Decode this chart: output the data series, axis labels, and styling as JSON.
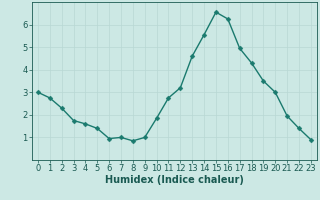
{
  "x": [
    0,
    1,
    2,
    3,
    4,
    5,
    6,
    7,
    8,
    9,
    10,
    11,
    12,
    13,
    14,
    15,
    16,
    17,
    18,
    19,
    20,
    21,
    22,
    23
  ],
  "y": [
    3.0,
    2.75,
    2.3,
    1.75,
    1.6,
    1.4,
    0.95,
    1.0,
    0.85,
    1.0,
    1.85,
    2.75,
    3.2,
    4.6,
    5.55,
    6.55,
    6.25,
    4.95,
    4.3,
    3.5,
    3.0,
    1.95,
    1.4,
    0.9
  ],
  "line_color": "#1a7a6e",
  "marker": "D",
  "marker_size": 2.5,
  "line_width": 1.0,
  "xlabel": "Humidex (Indice chaleur)",
  "xlim": [
    -0.5,
    23.5
  ],
  "ylim": [
    0,
    7
  ],
  "yticks": [
    1,
    2,
    3,
    4,
    5,
    6
  ],
  "xticks": [
    0,
    1,
    2,
    3,
    4,
    5,
    6,
    7,
    8,
    9,
    10,
    11,
    12,
    13,
    14,
    15,
    16,
    17,
    18,
    19,
    20,
    21,
    22,
    23
  ],
  "background_color": "#cce8e4",
  "grid_color": "#b8d8d4",
  "tick_label_fontsize": 6,
  "xlabel_fontsize": 7,
  "text_color": "#1a5a52"
}
